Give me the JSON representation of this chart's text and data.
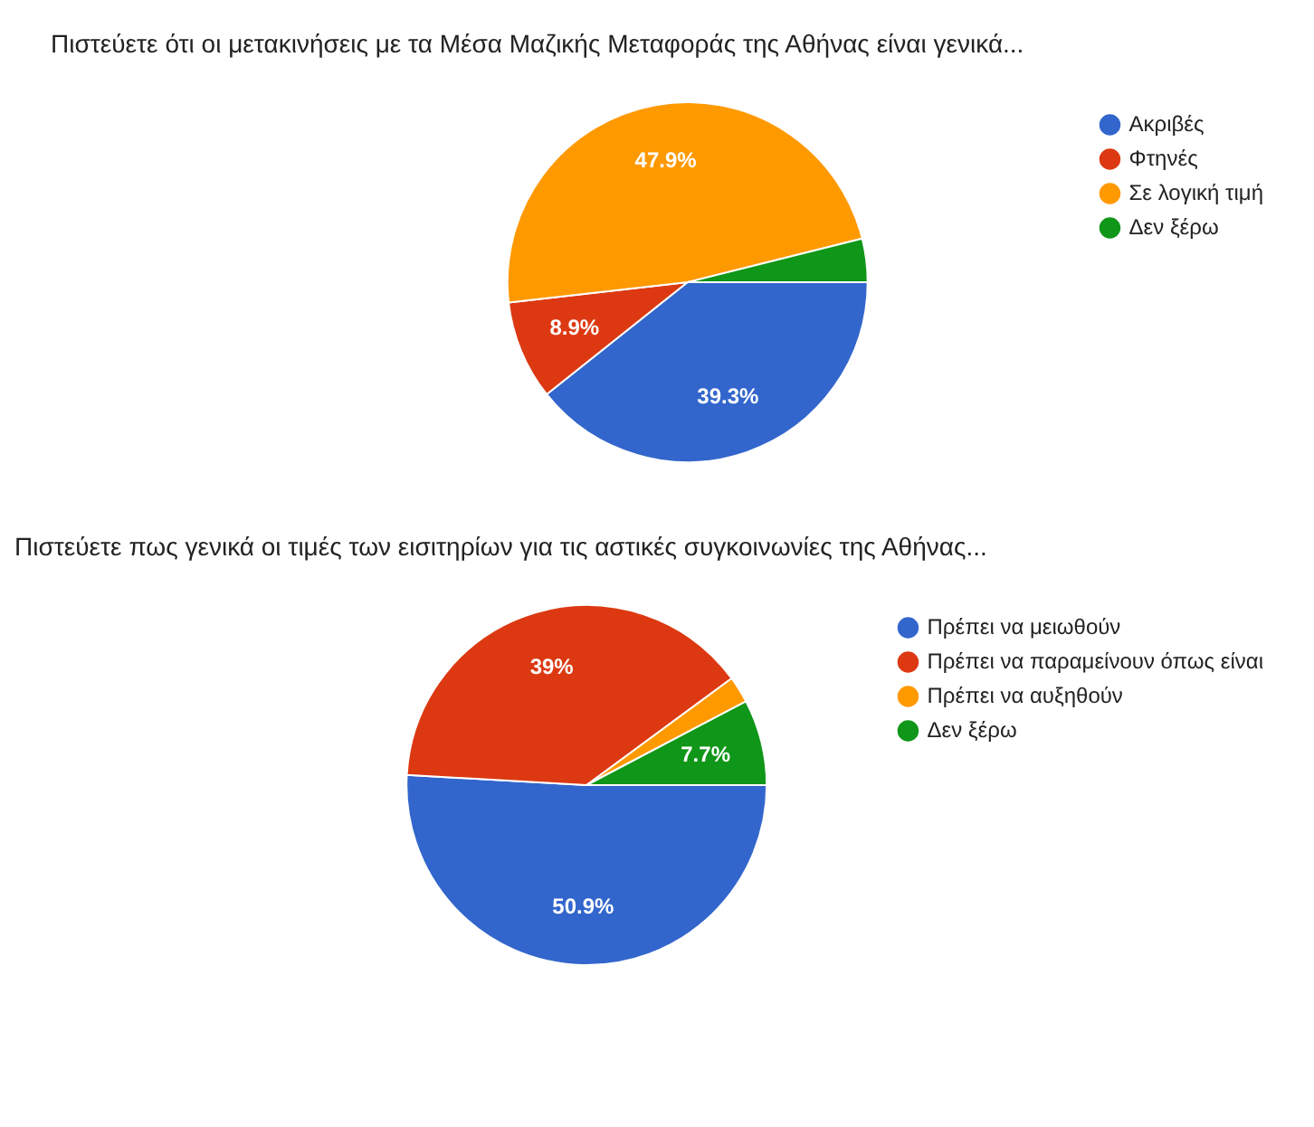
{
  "chart_data": [
    {
      "type": "pie",
      "title": "Πιστεύετε ότι οι μετακινήσεις με τα Μέσα Μαζικής Μεταφοράς της Αθήνας είναι γενικά...",
      "categories": [
        "Ακριβές",
        "Φτηνές",
        "Σε λογική τιμή",
        "Δεν ξέρω"
      ],
      "values": [
        39.3,
        8.9,
        47.9,
        3.9
      ],
      "colors": [
        "#3366cc",
        "#dc3912",
        "#ff9900",
        "#109618"
      ],
      "value_labels": [
        "39.3%",
        "8.9%",
        "47.9%",
        null
      ],
      "legend": "right"
    },
    {
      "type": "pie",
      "title": "Πιστεύετε πως γενικά οι τιμές των εισιτηρίων για τις αστικές συγκοινωνίες της Αθήνας...",
      "categories": [
        "Πρέπει να μειωθούν",
        "Πρέπει να παραμείνουν όπως είναι",
        "Πρέπει να αυξηθούν",
        "Δεν ξέρω"
      ],
      "values": [
        50.9,
        39,
        2.4,
        7.7
      ],
      "colors": [
        "#3366cc",
        "#dc3912",
        "#ff9900",
        "#109618"
      ],
      "value_labels": [
        "50.9%",
        "39%",
        null,
        "7.7%"
      ],
      "legend": "right"
    }
  ]
}
